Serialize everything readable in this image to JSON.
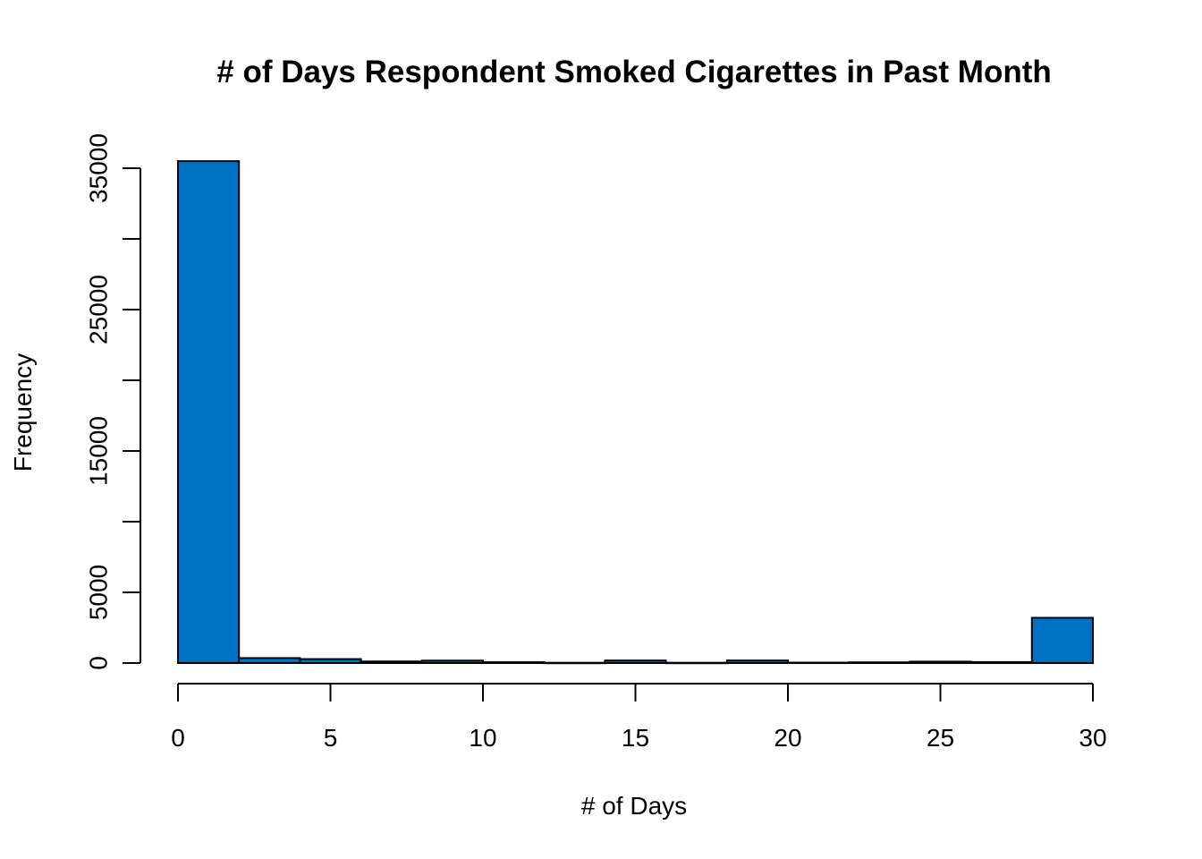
{
  "chart_data": {
    "type": "bar",
    "title": "# of Days Respondent Smoked Cigarettes in Past Month",
    "xlabel": "# of Days",
    "ylabel": "Frequency",
    "bar_color": "#0072C2",
    "bins": [
      {
        "x0": 0,
        "x1": 2,
        "value": 35500
      },
      {
        "x0": 2,
        "x1": 4,
        "value": 350
      },
      {
        "x0": 4,
        "x1": 6,
        "value": 280
      },
      {
        "x0": 6,
        "x1": 8,
        "value": 110
      },
      {
        "x0": 8,
        "x1": 10,
        "value": 170
      },
      {
        "x0": 10,
        "x1": 12,
        "value": 60
      },
      {
        "x0": 12,
        "x1": 14,
        "value": 20
      },
      {
        "x0": 14,
        "x1": 16,
        "value": 180
      },
      {
        "x0": 16,
        "x1": 18,
        "value": 20
      },
      {
        "x0": 18,
        "x1": 20,
        "value": 180
      },
      {
        "x0": 20,
        "x1": 22,
        "value": 30
      },
      {
        "x0": 22,
        "x1": 24,
        "value": 50
      },
      {
        "x0": 24,
        "x1": 26,
        "value": 100
      },
      {
        "x0": 26,
        "x1": 28,
        "value": 70
      },
      {
        "x0": 28,
        "x1": 30,
        "value": 3200
      }
    ],
    "xlim": [
      0,
      30
    ],
    "ylim": [
      0,
      35000
    ],
    "x_ticks": [
      0,
      5,
      10,
      15,
      20,
      25,
      30
    ],
    "y_ticks": [
      0,
      5000,
      10000,
      15000,
      20000,
      25000,
      30000,
      35000
    ],
    "y_tick_labels": [
      "0",
      "5000",
      "",
      "15000",
      "",
      "25000",
      "",
      "35000"
    ],
    "grid": false
  }
}
